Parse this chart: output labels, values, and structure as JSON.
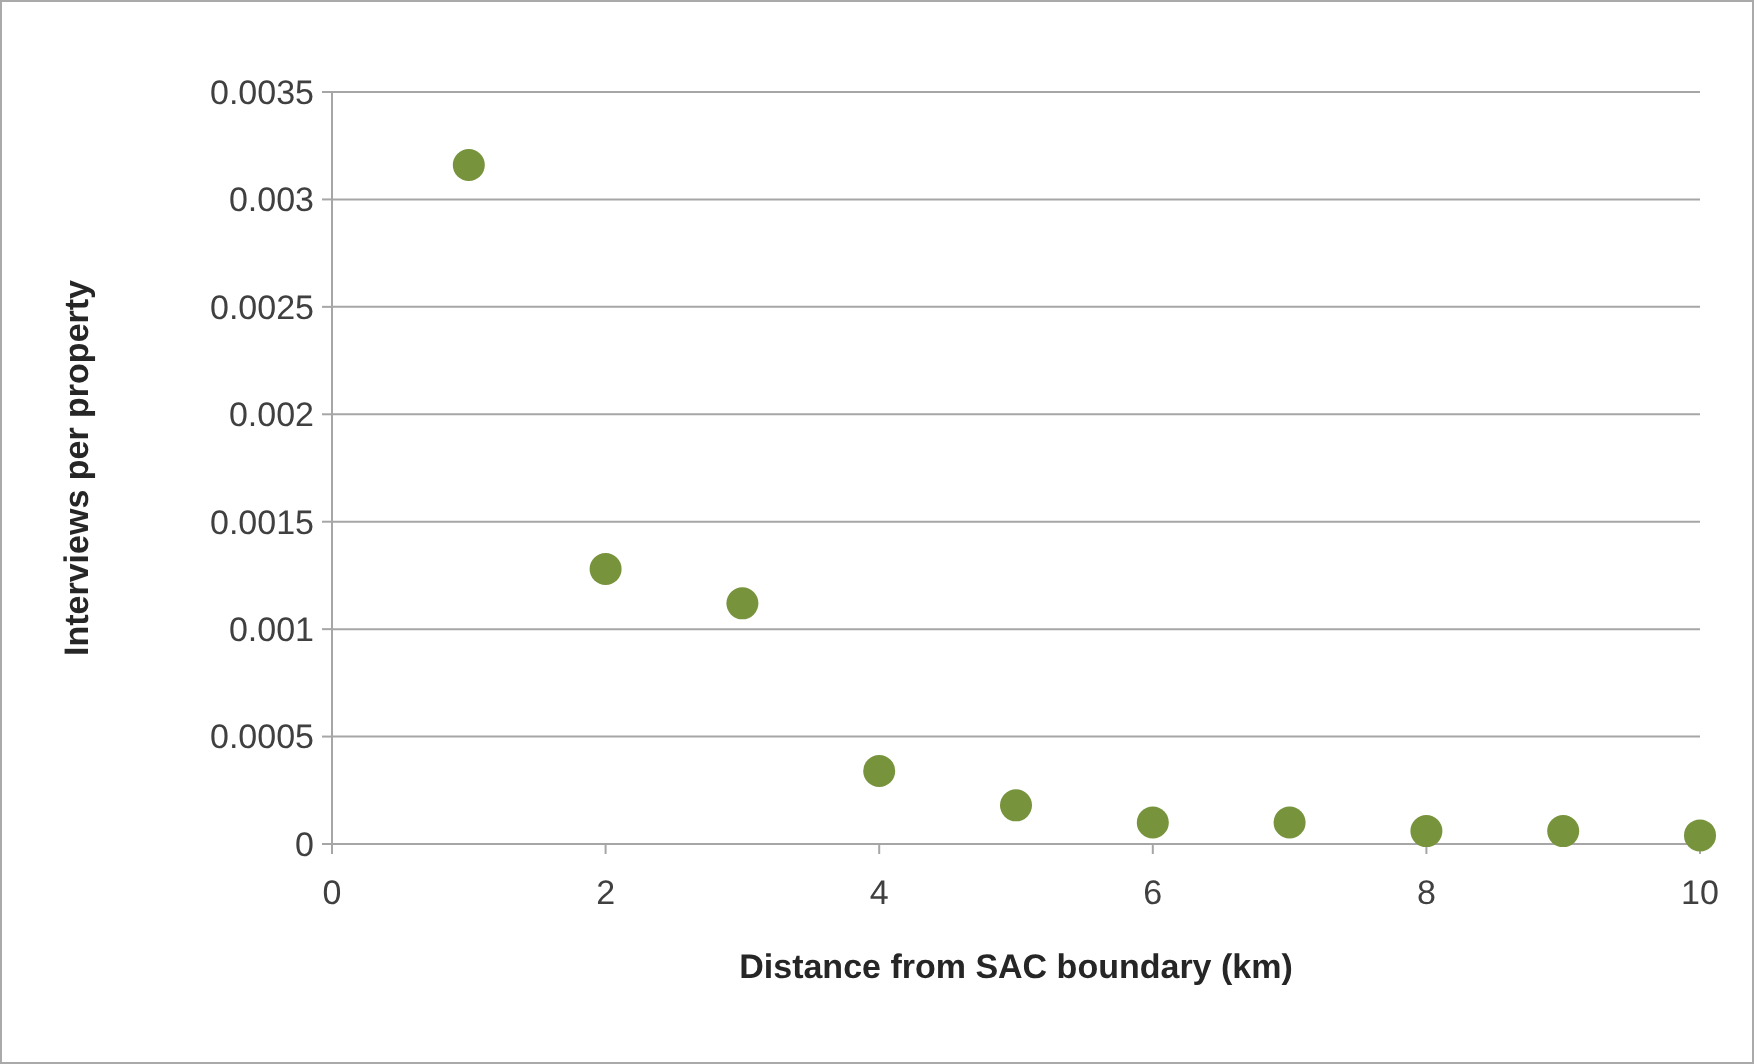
{
  "chart_data": {
    "type": "scatter",
    "xlabel": "Distance from SAC boundary (km)",
    "ylabel": "Interviews per property",
    "x": [
      1,
      2,
      3,
      4,
      5,
      6,
      7,
      8,
      9,
      10
    ],
    "series": [
      {
        "color": "#77933c",
        "values": [
          0.00316,
          0.00128,
          0.00112,
          0.00034,
          0.00018,
          0.0001,
          0.0001,
          6e-05,
          6e-05,
          4e-05
        ]
      }
    ],
    "xlim": [
      0,
      10
    ],
    "xticks": [
      0,
      2,
      4,
      6,
      8,
      10
    ],
    "ylim": [
      0,
      0.0035
    ],
    "yticks": [
      0,
      0.0005,
      0.001,
      0.0015,
      0.002,
      0.0025,
      0.003,
      0.0035
    ],
    "grid": "y",
    "marker": "circle"
  }
}
